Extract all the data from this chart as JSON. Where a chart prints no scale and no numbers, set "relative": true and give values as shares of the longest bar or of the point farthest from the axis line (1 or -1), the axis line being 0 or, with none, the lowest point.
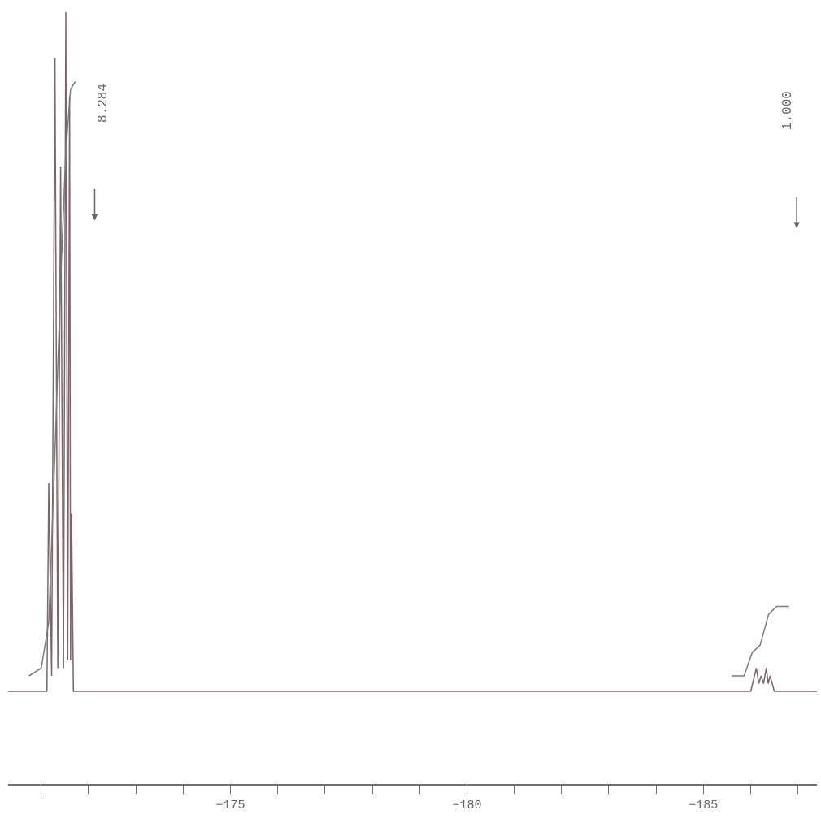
{
  "chart_data": {
    "type": "line",
    "relative": true,
    "marker": "none",
    "line_style": "solid",
    "xlim": [
      -170.3,
      -187.4
    ],
    "xticks": [
      {
        "value": -171,
        "label": null
      },
      {
        "value": -172,
        "label": null
      },
      {
        "value": -173,
        "label": null
      },
      {
        "value": -174,
        "label": null
      },
      -175,
      {
        "value": -176,
        "label": null
      },
      {
        "value": -177,
        "label": null
      },
      {
        "value": -178,
        "label": null
      },
      {
        "value": -179,
        "label": null
      },
      -180,
      {
        "value": -181,
        "label": null
      },
      {
        "value": -182,
        "label": null
      },
      {
        "value": -183,
        "label": null
      },
      {
        "value": -184,
        "label": null
      },
      -185,
      {
        "value": -186,
        "label": null
      },
      {
        "value": -187,
        "label": null
      }
    ],
    "series": [
      {
        "color": "#7a6468",
        "x": [
          -170.3,
          -171.12,
          -171.16,
          -171.22,
          -171.29,
          -171.35,
          -171.41,
          -171.47,
          -171.52,
          -171.56,
          -171.6,
          -171.62,
          -171.64,
          -171.68,
          -186.0,
          -186.12,
          -186.17,
          -186.22,
          -186.27,
          -186.33,
          -186.37,
          -186.41,
          -186.5,
          -187.4
        ],
        "values": [
          0.12,
          0.12,
          0.39,
          0.14,
          0.94,
          0.15,
          0.8,
          0.15,
          1.0,
          0.16,
          0.89,
          0.16,
          0.35,
          0.12,
          0.12,
          0.15,
          0.13,
          0.14,
          0.13,
          0.15,
          0.13,
          0.14,
          0.12,
          0.12
        ]
      },
      {
        "color": "#7a7a7a",
        "x": [
          -170.74,
          -171.0,
          -171.16,
          -171.29,
          -171.41,
          -171.52,
          -171.62,
          -171.72
        ],
        "values": [
          0.14,
          0.15,
          0.21,
          0.43,
          0.65,
          0.82,
          0.9,
          0.91
        ]
      },
      {
        "color": "#7a7a7a",
        "x": [
          -185.6,
          -185.86,
          -186.03,
          -186.2,
          -186.38,
          -186.55,
          -186.81
        ],
        "values": [
          0.14,
          0.14,
          0.17,
          0.18,
          0.22,
          0.23,
          0.23
        ]
      }
    ],
    "annotations": [
      "8.284",
      "1.000"
    ]
  }
}
